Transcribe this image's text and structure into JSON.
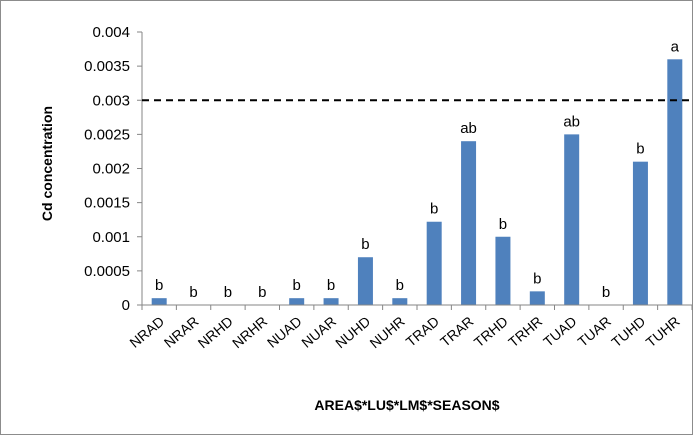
{
  "chart_data": {
    "type": "bar",
    "title": "",
    "xlabel": "AREA$*LU$*LM$*SEASON$",
    "ylabel": "Cd concentration",
    "ylim": [
      0,
      0.004
    ],
    "yticks": [
      "0",
      "0.0005",
      "0.001",
      "0.0015",
      "0.002",
      "0.0025",
      "0.003",
      "0.0035",
      "0.004"
    ],
    "grid": false,
    "threshold_line": 0.003,
    "threshold_style": "dashed",
    "bar_color": "#4f81bd",
    "categories": [
      "NRAD",
      "NRAR",
      "NRHD",
      "NRHR",
      "NUAD",
      "NUAR",
      "NUHD",
      "NUHR",
      "TRAD",
      "TRAR",
      "TRHD",
      "TRHR",
      "TUAD",
      "TUAR",
      "TUHD",
      "TUHR"
    ],
    "values": [
      0.0001,
      0,
      0,
      0,
      0.0001,
      0.0001,
      0.0007,
      0.0001,
      0.00122,
      0.0024,
      0.001,
      0.0002,
      0.0025,
      0,
      0.0021,
      0.0036
    ],
    "data_labels": [
      "b",
      "b",
      "b",
      "b",
      "b",
      "b",
      "b",
      "b",
      "b",
      "ab",
      "b",
      "b",
      "ab",
      "b",
      "b",
      "a"
    ]
  }
}
